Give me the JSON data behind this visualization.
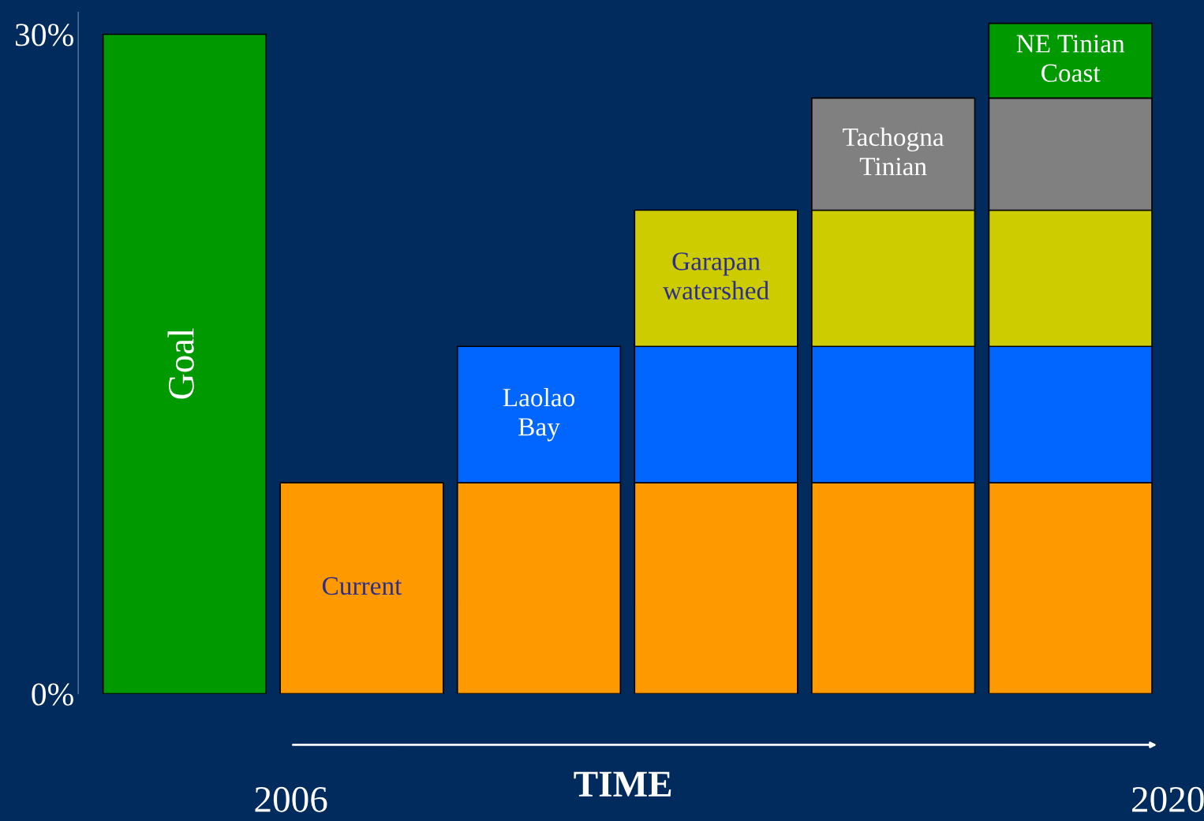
{
  "chart_data": {
    "type": "bar",
    "stacked": true,
    "xlabel": "TIME",
    "categories": [
      null,
      null,
      null,
      null,
      null,
      null
    ],
    "series": [
      {
        "name": "Goal",
        "color": "#009900",
        "values": [
          30,
          null,
          null,
          null,
          null,
          null
        ]
      },
      {
        "name": "Current",
        "color": "#ff9900",
        "values": [
          null,
          9.6,
          9.6,
          9.6,
          9.6,
          9.6
        ]
      },
      {
        "name": "Laolao Bay",
        "color": "#0066ff",
        "values": [
          null,
          null,
          6.2,
          6.2,
          6.2,
          6.2
        ]
      },
      {
        "name": "Garapan watershed",
        "color": "#cccc00",
        "values": [
          null,
          null,
          null,
          6.2,
          6.2,
          6.2
        ]
      },
      {
        "name": "Tachogna Tinian",
        "color": "#808080",
        "values": [
          null,
          null,
          null,
          null,
          5.1,
          5.1
        ]
      },
      {
        "name": "NE Tinian Coast",
        "color": "#009900",
        "values": [
          null,
          null,
          null,
          null,
          null,
          3.4
        ]
      }
    ],
    "ylim": [
      0,
      31
    ],
    "yticks": [
      {
        "value": 0,
        "label": "0%"
      },
      {
        "value": 30,
        "label": "30%"
      }
    ],
    "annotations": [
      "2006",
      "2020"
    ],
    "grid": false,
    "legend": false
  }
}
